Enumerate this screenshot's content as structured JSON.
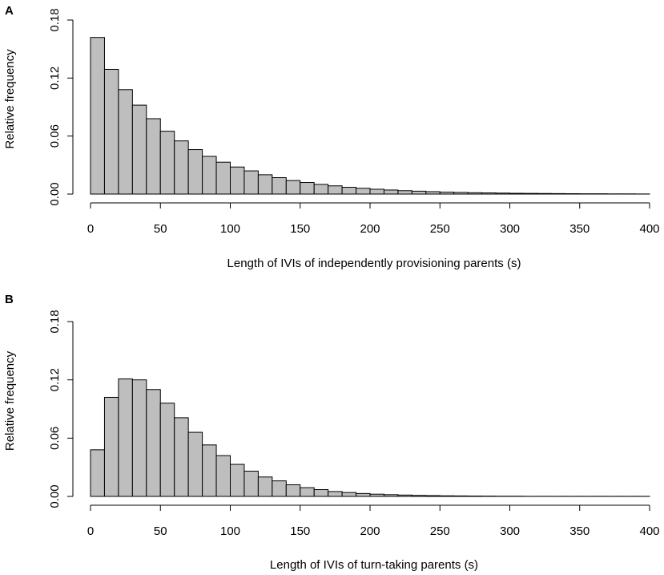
{
  "colors": {
    "bar_fill": "#bebebe",
    "bar_stroke": "#000000",
    "background": "#ffffff"
  },
  "chart_data": [
    {
      "type": "bar",
      "panel_label": "A",
      "title": "",
      "xlabel": "Length of IVIs of independently provisioning parents (s)",
      "ylabel": "Relative frequency",
      "xlim": [
        0,
        400
      ],
      "ylim": [
        0,
        0.18
      ],
      "xticks": [
        "0",
        "50",
        "100",
        "150",
        "200",
        "250",
        "300",
        "350",
        "400"
      ],
      "yticks": [
        "0.00",
        "0.06",
        "0.12",
        "0.18"
      ],
      "bin_width": 10,
      "bin_start": 0,
      "values": [
        0.162,
        0.129,
        0.108,
        0.092,
        0.078,
        0.065,
        0.055,
        0.046,
        0.039,
        0.033,
        0.028,
        0.024,
        0.02,
        0.017,
        0.014,
        0.012,
        0.01,
        0.0085,
        0.007,
        0.006,
        0.005,
        0.0042,
        0.0035,
        0.003,
        0.0025,
        0.002,
        0.0017,
        0.0014,
        0.0012,
        0.001,
        0.0008,
        0.0007,
        0.0006,
        0.0005,
        0.0004,
        0.0003,
        0.0003,
        0.0002,
        0.0002,
        0.0001
      ]
    },
    {
      "type": "bar",
      "panel_label": "B",
      "title": "",
      "xlabel": "Length of IVIs of turn-taking parents (s)",
      "ylabel": "Relative frequency",
      "xlim": [
        0,
        400
      ],
      "ylim": [
        0,
        0.18
      ],
      "xticks": [
        "0",
        "50",
        "100",
        "150",
        "200",
        "250",
        "300",
        "350",
        "400"
      ],
      "yticks": [
        "0.00",
        "0.06",
        "0.12",
        "0.18"
      ],
      "bin_width": 10,
      "bin_start": 0,
      "values": [
        0.048,
        0.102,
        0.121,
        0.12,
        0.11,
        0.096,
        0.081,
        0.066,
        0.053,
        0.042,
        0.033,
        0.026,
        0.02,
        0.016,
        0.012,
        0.009,
        0.007,
        0.005,
        0.004,
        0.003,
        0.0023,
        0.0018,
        0.0014,
        0.001,
        0.0008,
        0.0006,
        0.0005,
        0.0004,
        0.0003,
        0.0002,
        0.0002,
        0.0001,
        0.0001,
        0.0001,
        0.0001,
        0.0001,
        0.0001,
        0.0001,
        0.0001,
        0.0001
      ]
    }
  ]
}
